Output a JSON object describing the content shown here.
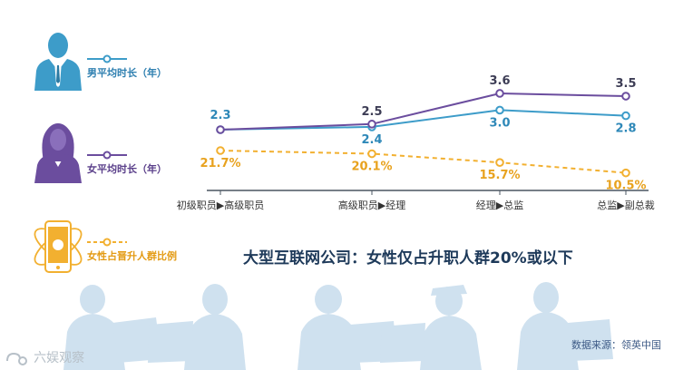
{
  "legend": {
    "male_label": "男平均时长（年）",
    "female_label": "女平均时长（年）",
    "ratio_label": "女性占晋升人群比例"
  },
  "headline": "大型互联网公司：女性仅占升职人群20%或以下",
  "source": "数据来源：领英中国",
  "watermark": "六娱观察",
  "colors": {
    "male": "#3d9cc9",
    "female": "#6b4d9e",
    "ratio": "#f2b030",
    "silhouette": "#cfe1ef",
    "axis": "#4a5560"
  },
  "chart_data": {
    "type": "line",
    "categories": [
      "初级职员▶高级职员",
      "高级职员▶经理",
      "经理▶总监",
      "总监▶副总裁"
    ],
    "series": [
      {
        "name": "男平均时长（年）",
        "values": [
          2.3,
          2.4,
          3.0,
          2.8
        ],
        "labels": [
          "2.3",
          "2.4",
          "3.0",
          "2.8"
        ],
        "style": "solid"
      },
      {
        "name": "女平均时长（年）",
        "values": [
          2.3,
          2.5,
          3.6,
          3.5
        ],
        "labels": [
          "",
          "2.5",
          "3.6",
          "3.5"
        ],
        "style": "solid"
      },
      {
        "name": "女性占晋升人群比例",
        "values": [
          21.7,
          20.1,
          15.7,
          10.5
        ],
        "labels": [
          "21.7%",
          "20.1%",
          "15.7%",
          "10.5%"
        ],
        "style": "dashed",
        "unit": "%"
      }
    ],
    "grid": false,
    "legend_position": "left"
  }
}
